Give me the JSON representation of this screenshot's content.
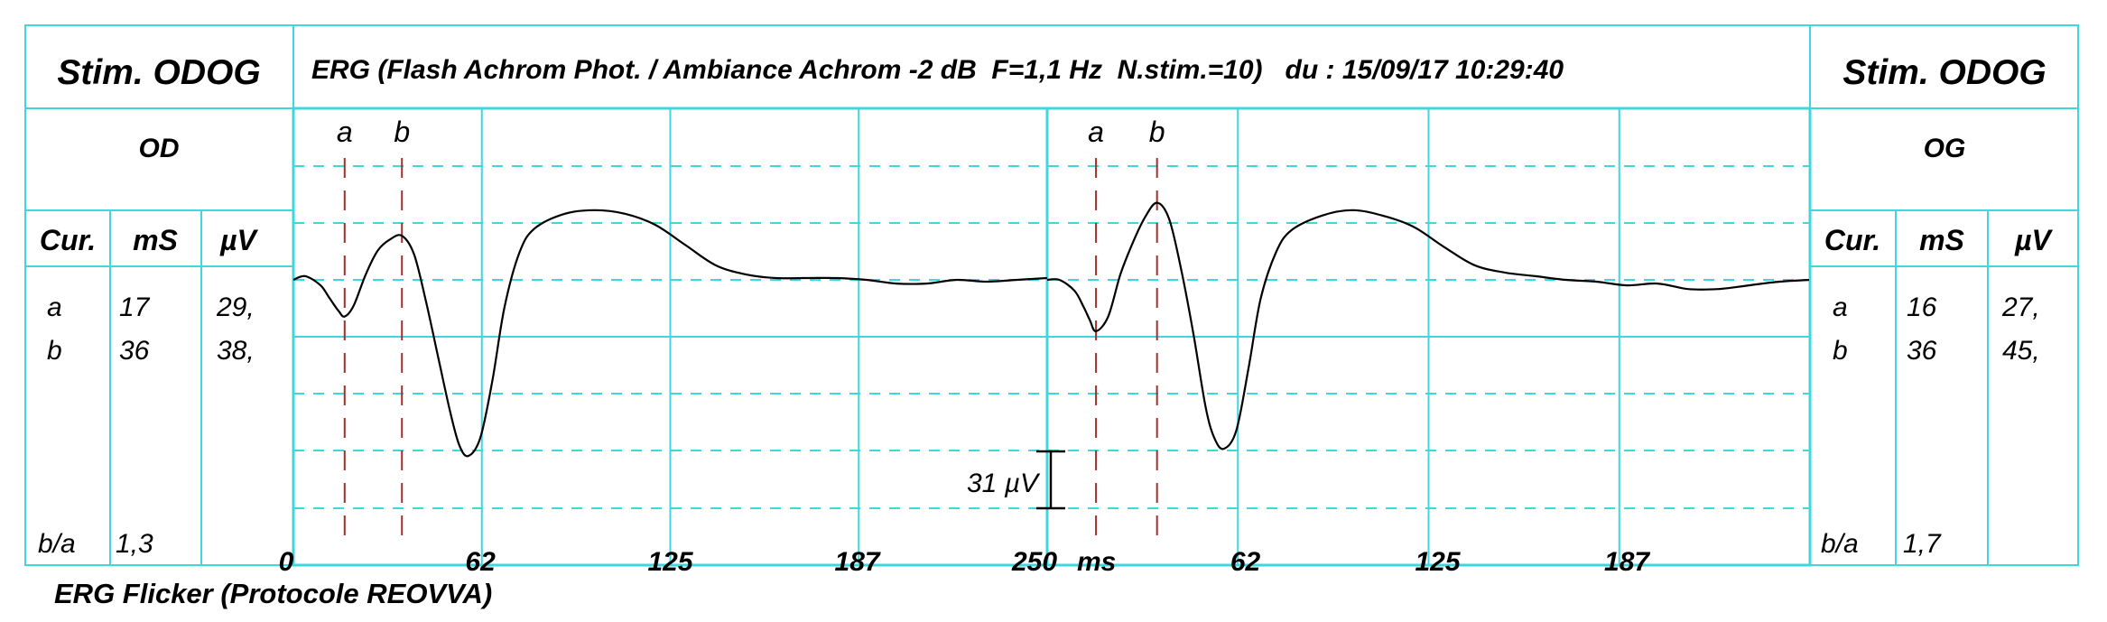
{
  "colors": {
    "grid": "#3fd6dc",
    "trace": "#000000",
    "cursor_line": "#a0302a",
    "background": "#ffffff"
  },
  "left_panel": {
    "title": "Stim. ODOG",
    "eye": "OD",
    "headers": [
      "Cur.",
      "mS",
      "µV"
    ],
    "rows": [
      {
        "cur": "a",
        "ms": "17",
        "uv": "29,"
      },
      {
        "cur": "b",
        "ms": "36",
        "uv": "38,"
      }
    ],
    "ratio_label": "b/a",
    "ratio_value": "1,3"
  },
  "right_panel": {
    "title": "Stim. ODOG",
    "eye": "OG",
    "headers": [
      "Cur.",
      "mS",
      "µV"
    ],
    "rows": [
      {
        "cur": "a",
        "ms": "16",
        "uv": "27,"
      },
      {
        "cur": "b",
        "ms": "36",
        "uv": "45,"
      }
    ],
    "ratio_label": "b/a",
    "ratio_value": "1,7"
  },
  "header_title": "ERG (Flash Achrom Phot. / Ambiance Achrom -2 dB  F=1,1 Hz  N.stim.=10)   du : 15/09/17 10:29:40",
  "footer_caption": "ERG Flicker (Protocole REOVVA)",
  "scale_bar_label": "31 µV",
  "chart_data": {
    "type": "line",
    "xlabel": "ms",
    "x_ticks_left": [
      "0",
      "62",
      "125",
      "187",
      "250"
    ],
    "x_ticks_right": [
      "62",
      "125",
      "187"
    ],
    "xlim": [
      0,
      250
    ],
    "ylabel": "",
    "scale_bar_uv": 31,
    "grid": true,
    "series": [
      {
        "name": "OD",
        "x": [
          0,
          4,
          9,
          12,
          15,
          17,
          20,
          24,
          28,
          32,
          36,
          40,
          44,
          48,
          52,
          55,
          58,
          62,
          66,
          70,
          75,
          80,
          90,
          100,
          110,
          120,
          130,
          140,
          150,
          160,
          170,
          180,
          190,
          200,
          210,
          220,
          230,
          240,
          250
        ],
        "y": [
          0,
          2,
          -3,
          -10,
          -17,
          -20,
          -14,
          3,
          16,
          22,
          24,
          14,
          -12,
          -42,
          -72,
          -90,
          -96,
          -86,
          -55,
          -15,
          15,
          28,
          36,
          38,
          36,
          30,
          19,
          8,
          3,
          1,
          1,
          1,
          0,
          -2,
          -2,
          0,
          -1,
          0,
          1
        ],
        "cursors": [
          {
            "label": "a",
            "x": 17
          },
          {
            "label": "b",
            "x": 36
          }
        ]
      },
      {
        "name": "OG",
        "x": [
          0,
          4,
          9,
          12,
          14,
          16,
          20,
          24,
          28,
          32,
          36,
          40,
          44,
          48,
          52,
          55,
          58,
          62,
          66,
          70,
          75,
          80,
          90,
          100,
          110,
          120,
          130,
          140,
          150,
          160,
          170,
          180,
          190,
          200,
          210,
          220,
          230,
          240,
          250
        ],
        "y": [
          0,
          0,
          -6,
          -15,
          -22,
          -28,
          -20,
          3,
          20,
          34,
          42,
          33,
          5,
          -30,
          -70,
          -87,
          -92,
          -82,
          -48,
          -10,
          15,
          27,
          35,
          38,
          35,
          29,
          18,
          8,
          4,
          2,
          0,
          -1,
          -3,
          -2,
          -5,
          -5,
          -3,
          -1,
          0
        ],
        "cursors": [
          {
            "label": "a",
            "x": 16
          },
          {
            "label": "b",
            "x": 36
          }
        ]
      }
    ]
  }
}
